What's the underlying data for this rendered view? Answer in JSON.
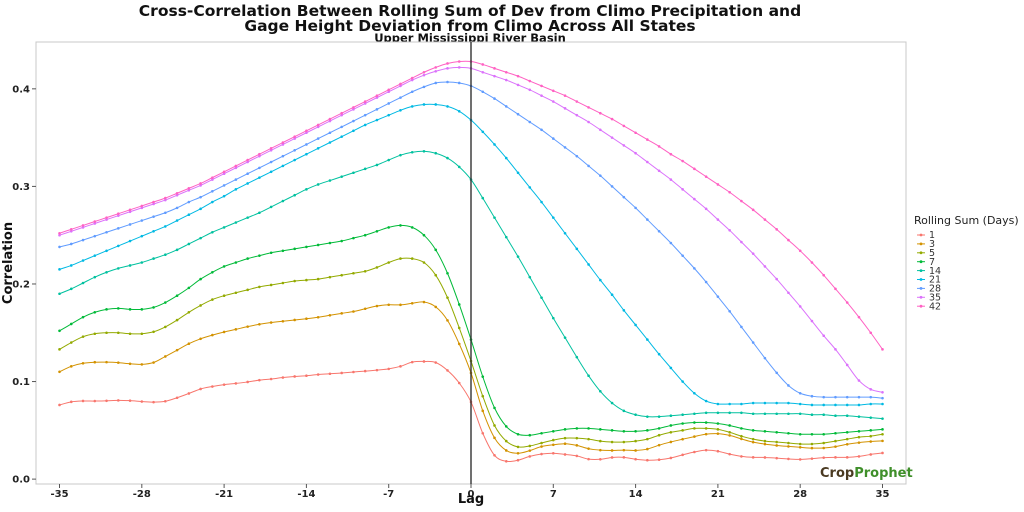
{
  "chart_data": {
    "type": "line",
    "title_line1": "Cross-Correlation Between Rolling Sum of Dev from Climo Precipitation and",
    "title_line2": "Gage Height Deviation from Climo Across All States",
    "subtitle": "Upper Mississippi River Basin",
    "xlabel": "Lag",
    "ylabel": "Correlation",
    "xlim": [
      -37,
      37
    ],
    "ylim": [
      -0.005,
      0.448
    ],
    "x_ticks": [
      -35,
      -28,
      -21,
      -14,
      -7,
      0,
      7,
      14,
      21,
      28,
      35
    ],
    "x_tick_labels": [
      "-35",
      "-28",
      "-21",
      "-14",
      "-7",
      "0",
      "7",
      "14",
      "21",
      "28",
      "35"
    ],
    "y_ticks": [
      0.0,
      0.1,
      0.2,
      0.3,
      0.4
    ],
    "y_tick_labels": [
      "0.0",
      "0.1",
      "0.2",
      "0.3",
      "0.4"
    ],
    "vline_x": 0,
    "grid": false,
    "legend_title": "Rolling Sum (Days)",
    "legend_position": "right",
    "x": [
      -35,
      -34,
      -33,
      -32,
      -31,
      -30,
      -29,
      -28,
      -27,
      -26,
      -25,
      -24,
      -23,
      -22,
      -21,
      -20,
      -19,
      -18,
      -17,
      -16,
      -15,
      -14,
      -13,
      -12,
      -11,
      -10,
      -9,
      -8,
      -7,
      -6,
      -5,
      -4,
      -3,
      -2,
      -1,
      0,
      1,
      2,
      3,
      4,
      5,
      6,
      7,
      8,
      9,
      10,
      11,
      12,
      13,
      14,
      15,
      16,
      17,
      18,
      19,
      20,
      21,
      22,
      23,
      24,
      25,
      26,
      27,
      28,
      29,
      30,
      31,
      32,
      33,
      34,
      35
    ],
    "series": [
      {
        "name": "1",
        "color": "#F8766D",
        "values": [
          0.076,
          0.0792,
          0.0801,
          0.08,
          0.0803,
          0.0807,
          0.0804,
          0.0795,
          0.0789,
          0.0798,
          0.0834,
          0.0878,
          0.0924,
          0.0949,
          0.0968,
          0.0981,
          0.0996,
          0.1014,
          0.1026,
          0.1041,
          0.1052,
          0.106,
          0.1072,
          0.108,
          0.1088,
          0.1098,
          0.1107,
          0.1117,
          0.113,
          0.1156,
          0.1199,
          0.1206,
          0.1195,
          0.1114,
          0.0985,
          0.0791,
          0.047,
          0.0244,
          0.0183,
          0.0194,
          0.0233,
          0.0257,
          0.0265,
          0.0253,
          0.0238,
          0.0205,
          0.0203,
          0.0222,
          0.0223,
          0.0204,
          0.0194,
          0.0199,
          0.0217,
          0.0249,
          0.0278,
          0.0297,
          0.0286,
          0.0256,
          0.0233,
          0.0223,
          0.0222,
          0.0215,
          0.0207,
          0.0202,
          0.021,
          0.022,
          0.0223,
          0.0223,
          0.0233,
          0.0253,
          0.0268
        ]
      },
      {
        "name": "3",
        "color": "#D39200",
        "values": [
          0.11,
          0.1156,
          0.1187,
          0.1198,
          0.1199,
          0.1194,
          0.1182,
          0.1176,
          0.1195,
          0.1257,
          0.1322,
          0.1388,
          0.1438,
          0.1476,
          0.1508,
          0.1535,
          0.1563,
          0.1587,
          0.1605,
          0.1618,
          0.1631,
          0.1644,
          0.1659,
          0.1679,
          0.1699,
          0.1718,
          0.1746,
          0.1774,
          0.1787,
          0.1786,
          0.1802,
          0.1815,
          0.1765,
          0.1627,
          0.1386,
          0.1088,
          0.07,
          0.0423,
          0.0294,
          0.0265,
          0.0292,
          0.0334,
          0.0352,
          0.0363,
          0.0346,
          0.0312,
          0.0297,
          0.0294,
          0.0297,
          0.0294,
          0.0308,
          0.0348,
          0.0381,
          0.0409,
          0.0436,
          0.0461,
          0.0466,
          0.0448,
          0.0412,
          0.0379,
          0.0359,
          0.0345,
          0.0335,
          0.0326,
          0.0318,
          0.0319,
          0.0333,
          0.0357,
          0.0374,
          0.0385,
          0.0392
        ]
      },
      {
        "name": "5",
        "color": "#93AA00",
        "values": [
          0.133,
          0.14,
          0.146,
          0.149,
          0.15,
          0.15,
          0.149,
          0.149,
          0.151,
          0.156,
          0.163,
          0.171,
          0.178,
          0.184,
          0.188,
          0.191,
          0.194,
          0.197,
          0.199,
          0.201,
          0.203,
          0.204,
          0.205,
          0.207,
          0.209,
          0.211,
          0.213,
          0.217,
          0.222,
          0.226,
          0.226,
          0.222,
          0.209,
          0.186,
          0.155,
          0.121,
          0.085,
          0.055,
          0.039,
          0.033,
          0.034,
          0.037,
          0.04,
          0.042,
          0.042,
          0.041,
          0.039,
          0.038,
          0.038,
          0.039,
          0.041,
          0.045,
          0.048,
          0.05,
          0.052,
          0.052,
          0.051,
          0.048,
          0.044,
          0.041,
          0.039,
          0.038,
          0.037,
          0.036,
          0.036,
          0.037,
          0.039,
          0.041,
          0.043,
          0.044,
          0.046
        ]
      },
      {
        "name": "7",
        "color": "#00BA38",
        "values": [
          0.152,
          0.159,
          0.166,
          0.171,
          0.174,
          0.175,
          0.174,
          0.174,
          0.176,
          0.181,
          0.188,
          0.196,
          0.205,
          0.212,
          0.218,
          0.222,
          0.226,
          0.229,
          0.232,
          0.234,
          0.236,
          0.238,
          0.24,
          0.242,
          0.244,
          0.247,
          0.25,
          0.254,
          0.258,
          0.26,
          0.258,
          0.25,
          0.235,
          0.211,
          0.179,
          0.143,
          0.105,
          0.073,
          0.054,
          0.046,
          0.045,
          0.047,
          0.049,
          0.051,
          0.052,
          0.052,
          0.051,
          0.05,
          0.049,
          0.049,
          0.05,
          0.052,
          0.055,
          0.057,
          0.058,
          0.058,
          0.057,
          0.055,
          0.052,
          0.05,
          0.049,
          0.048,
          0.047,
          0.046,
          0.046,
          0.046,
          0.047,
          0.048,
          0.049,
          0.05,
          0.051
        ]
      },
      {
        "name": "14",
        "color": "#00C19F",
        "values": [
          0.19,
          0.195,
          0.201,
          0.207,
          0.212,
          0.216,
          0.219,
          0.222,
          0.226,
          0.23,
          0.235,
          0.241,
          0.247,
          0.253,
          0.258,
          0.263,
          0.268,
          0.273,
          0.279,
          0.285,
          0.291,
          0.297,
          0.302,
          0.306,
          0.31,
          0.314,
          0.318,
          0.322,
          0.327,
          0.332,
          0.335,
          0.336,
          0.334,
          0.329,
          0.32,
          0.307,
          0.288,
          0.268,
          0.248,
          0.228,
          0.207,
          0.186,
          0.165,
          0.145,
          0.125,
          0.106,
          0.09,
          0.078,
          0.07,
          0.066,
          0.064,
          0.064,
          0.065,
          0.066,
          0.067,
          0.068,
          0.068,
          0.068,
          0.068,
          0.067,
          0.067,
          0.067,
          0.067,
          0.067,
          0.066,
          0.066,
          0.065,
          0.065,
          0.064,
          0.063,
          0.062
        ]
      },
      {
        "name": "21",
        "color": "#00B9E3",
        "values": [
          0.215,
          0.219,
          0.224,
          0.229,
          0.234,
          0.239,
          0.244,
          0.249,
          0.254,
          0.259,
          0.265,
          0.271,
          0.277,
          0.284,
          0.29,
          0.297,
          0.303,
          0.309,
          0.315,
          0.321,
          0.327,
          0.333,
          0.339,
          0.345,
          0.351,
          0.357,
          0.363,
          0.368,
          0.373,
          0.378,
          0.382,
          0.384,
          0.384,
          0.382,
          0.377,
          0.368,
          0.356,
          0.343,
          0.329,
          0.314,
          0.299,
          0.284,
          0.268,
          0.252,
          0.236,
          0.22,
          0.204,
          0.189,
          0.173,
          0.158,
          0.143,
          0.128,
          0.114,
          0.1,
          0.088,
          0.08,
          0.077,
          0.077,
          0.077,
          0.078,
          0.078,
          0.078,
          0.078,
          0.077,
          0.076,
          0.076,
          0.076,
          0.076,
          0.076,
          0.077,
          0.077
        ]
      },
      {
        "name": "28",
        "color": "#619CFF",
        "values": [
          0.238,
          0.241,
          0.245,
          0.249,
          0.253,
          0.257,
          0.261,
          0.265,
          0.269,
          0.273,
          0.278,
          0.284,
          0.289,
          0.295,
          0.301,
          0.307,
          0.313,
          0.319,
          0.325,
          0.331,
          0.337,
          0.343,
          0.349,
          0.355,
          0.361,
          0.367,
          0.373,
          0.379,
          0.385,
          0.391,
          0.397,
          0.402,
          0.406,
          0.407,
          0.406,
          0.403,
          0.397,
          0.39,
          0.382,
          0.374,
          0.366,
          0.358,
          0.349,
          0.34,
          0.331,
          0.321,
          0.311,
          0.3,
          0.289,
          0.278,
          0.266,
          0.254,
          0.242,
          0.229,
          0.216,
          0.202,
          0.187,
          0.172,
          0.156,
          0.14,
          0.124,
          0.109,
          0.096,
          0.088,
          0.085,
          0.084,
          0.084,
          0.084,
          0.084,
          0.084,
          0.083
        ]
      },
      {
        "name": "35",
        "color": "#DB72FB",
        "values": [
          0.25,
          0.254,
          0.258,
          0.262,
          0.266,
          0.27,
          0.274,
          0.278,
          0.282,
          0.286,
          0.291,
          0.296,
          0.301,
          0.307,
          0.313,
          0.319,
          0.325,
          0.331,
          0.337,
          0.343,
          0.349,
          0.355,
          0.361,
          0.367,
          0.373,
          0.379,
          0.385,
          0.391,
          0.397,
          0.403,
          0.409,
          0.414,
          0.418,
          0.421,
          0.422,
          0.421,
          0.417,
          0.413,
          0.409,
          0.404,
          0.399,
          0.393,
          0.387,
          0.38,
          0.373,
          0.366,
          0.358,
          0.35,
          0.342,
          0.334,
          0.325,
          0.316,
          0.307,
          0.297,
          0.287,
          0.277,
          0.266,
          0.255,
          0.243,
          0.231,
          0.218,
          0.205,
          0.191,
          0.177,
          0.162,
          0.147,
          0.133,
          0.117,
          0.101,
          0.092,
          0.089
        ]
      },
      {
        "name": "42",
        "color": "#FF61C3",
        "values": [
          0.252,
          0.256,
          0.26,
          0.264,
          0.268,
          0.272,
          0.276,
          0.28,
          0.284,
          0.288,
          0.293,
          0.298,
          0.303,
          0.309,
          0.315,
          0.321,
          0.327,
          0.333,
          0.339,
          0.345,
          0.351,
          0.357,
          0.363,
          0.369,
          0.375,
          0.381,
          0.387,
          0.393,
          0.399,
          0.405,
          0.411,
          0.417,
          0.422,
          0.426,
          0.428,
          0.428,
          0.425,
          0.421,
          0.417,
          0.413,
          0.408,
          0.403,
          0.398,
          0.393,
          0.387,
          0.381,
          0.375,
          0.369,
          0.362,
          0.355,
          0.348,
          0.341,
          0.333,
          0.326,
          0.318,
          0.31,
          0.302,
          0.294,
          0.285,
          0.276,
          0.266,
          0.256,
          0.245,
          0.234,
          0.222,
          0.209,
          0.195,
          0.181,
          0.166,
          0.15,
          0.133
        ]
      }
    ]
  },
  "logo": {
    "part1": "Crop",
    "part2": "Prophet"
  }
}
